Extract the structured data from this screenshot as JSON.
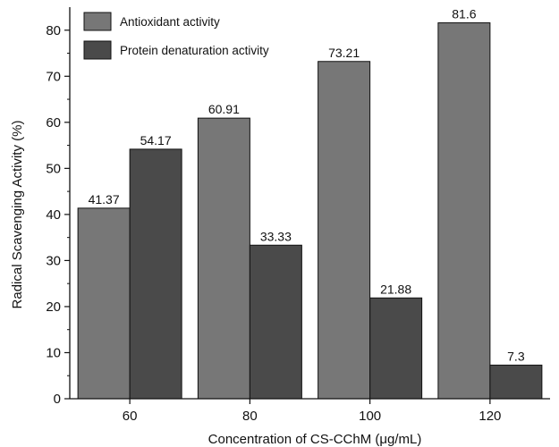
{
  "chart_data": {
    "type": "bar",
    "categories": [
      "60",
      "80",
      "100",
      "120"
    ],
    "series": [
      {
        "name": "Antioxidant activity",
        "values": [
          41.37,
          60.91,
          73.21,
          81.6
        ],
        "labels": [
          "41.37",
          "60.91",
          "73.21",
          "81.6"
        ],
        "color": "#777777"
      },
      {
        "name": "Protein denaturation activity",
        "values": [
          54.17,
          33.33,
          21.88,
          7.3
        ],
        "labels": [
          "54.17",
          "33.33",
          "21.88",
          "7.3"
        ],
        "color": "#4a4a4a"
      }
    ],
    "xlabel": "Concentration of CS-CChM (μg/mL)",
    "ylabel": "Radical Scavenging Activity (%)",
    "ylim": [
      0,
      85
    ],
    "yticks": [
      0,
      10,
      20,
      30,
      40,
      50,
      60,
      70,
      80
    ],
    "legend_position": "top-left",
    "grid": false
  }
}
